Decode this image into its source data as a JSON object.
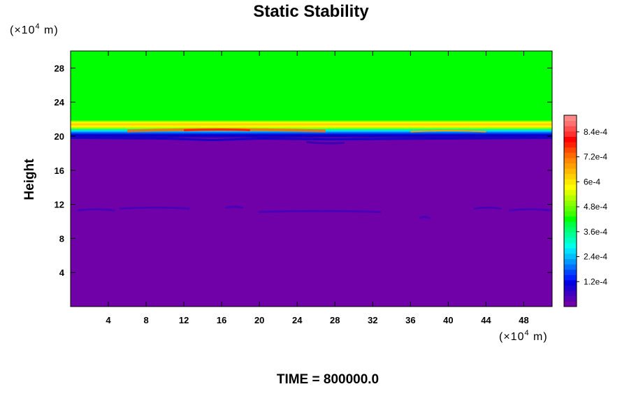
{
  "chart_data": {
    "type": "heatmap",
    "title": "Static Stability",
    "ylabel": "Height",
    "xlabel": "",
    "x_unit_prefix": "(×10",
    "x_unit_exp": "4",
    "x_unit_suffix": " m)",
    "y_unit_prefix": "(×10",
    "y_unit_exp": "4",
    "y_unit_suffix": " m)",
    "xlim": [
      0,
      51
    ],
    "ylim": [
      0,
      30
    ],
    "xticks": [
      4,
      8,
      12,
      16,
      20,
      24,
      28,
      32,
      36,
      40,
      44,
      48
    ],
    "yticks": [
      4,
      8,
      12,
      16,
      20,
      24,
      28
    ],
    "colorbar": {
      "min": 0,
      "max": 0.00092,
      "ticks": [
        0.00012,
        0.00024,
        0.00036,
        0.00048,
        0.0006,
        0.00072,
        0.00084
      ],
      "tick_labels": [
        "1.2e-4",
        "2.4e-4",
        "3.6e-4",
        "4.8e-4",
        "6e-4",
        "7.2e-4",
        "8.4e-4"
      ]
    },
    "fields": {
      "lower_layer": {
        "y_range": [
          0,
          19.9
        ],
        "value": 0.0
      },
      "tropopause_band_bottom": {
        "y": 19.8,
        "value": 0.00012
      },
      "transition_band": {
        "y_range": [
          20.0,
          20.4
        ],
        "value": 0.0003
      },
      "peak_band": {
        "y": 20.7,
        "value": 0.00075,
        "max_near_x": 16,
        "max_value": 0.00084
      },
      "upper_band": {
        "y": 21.2,
        "value": 0.0006
      },
      "upper_layer": {
        "y_range": [
          21.8,
          30
        ],
        "value": 0.00047
      },
      "mid_level_streak": {
        "y": 11.2,
        "value": 6e-05
      }
    },
    "grid": false,
    "legend": "colorbar-right"
  },
  "footer": {
    "label": "TIME = 800000.0"
  },
  "colors": {
    "low": "#7000a8",
    "green": "#00ff00",
    "axis": "#000000",
    "background": "#ffffff"
  }
}
